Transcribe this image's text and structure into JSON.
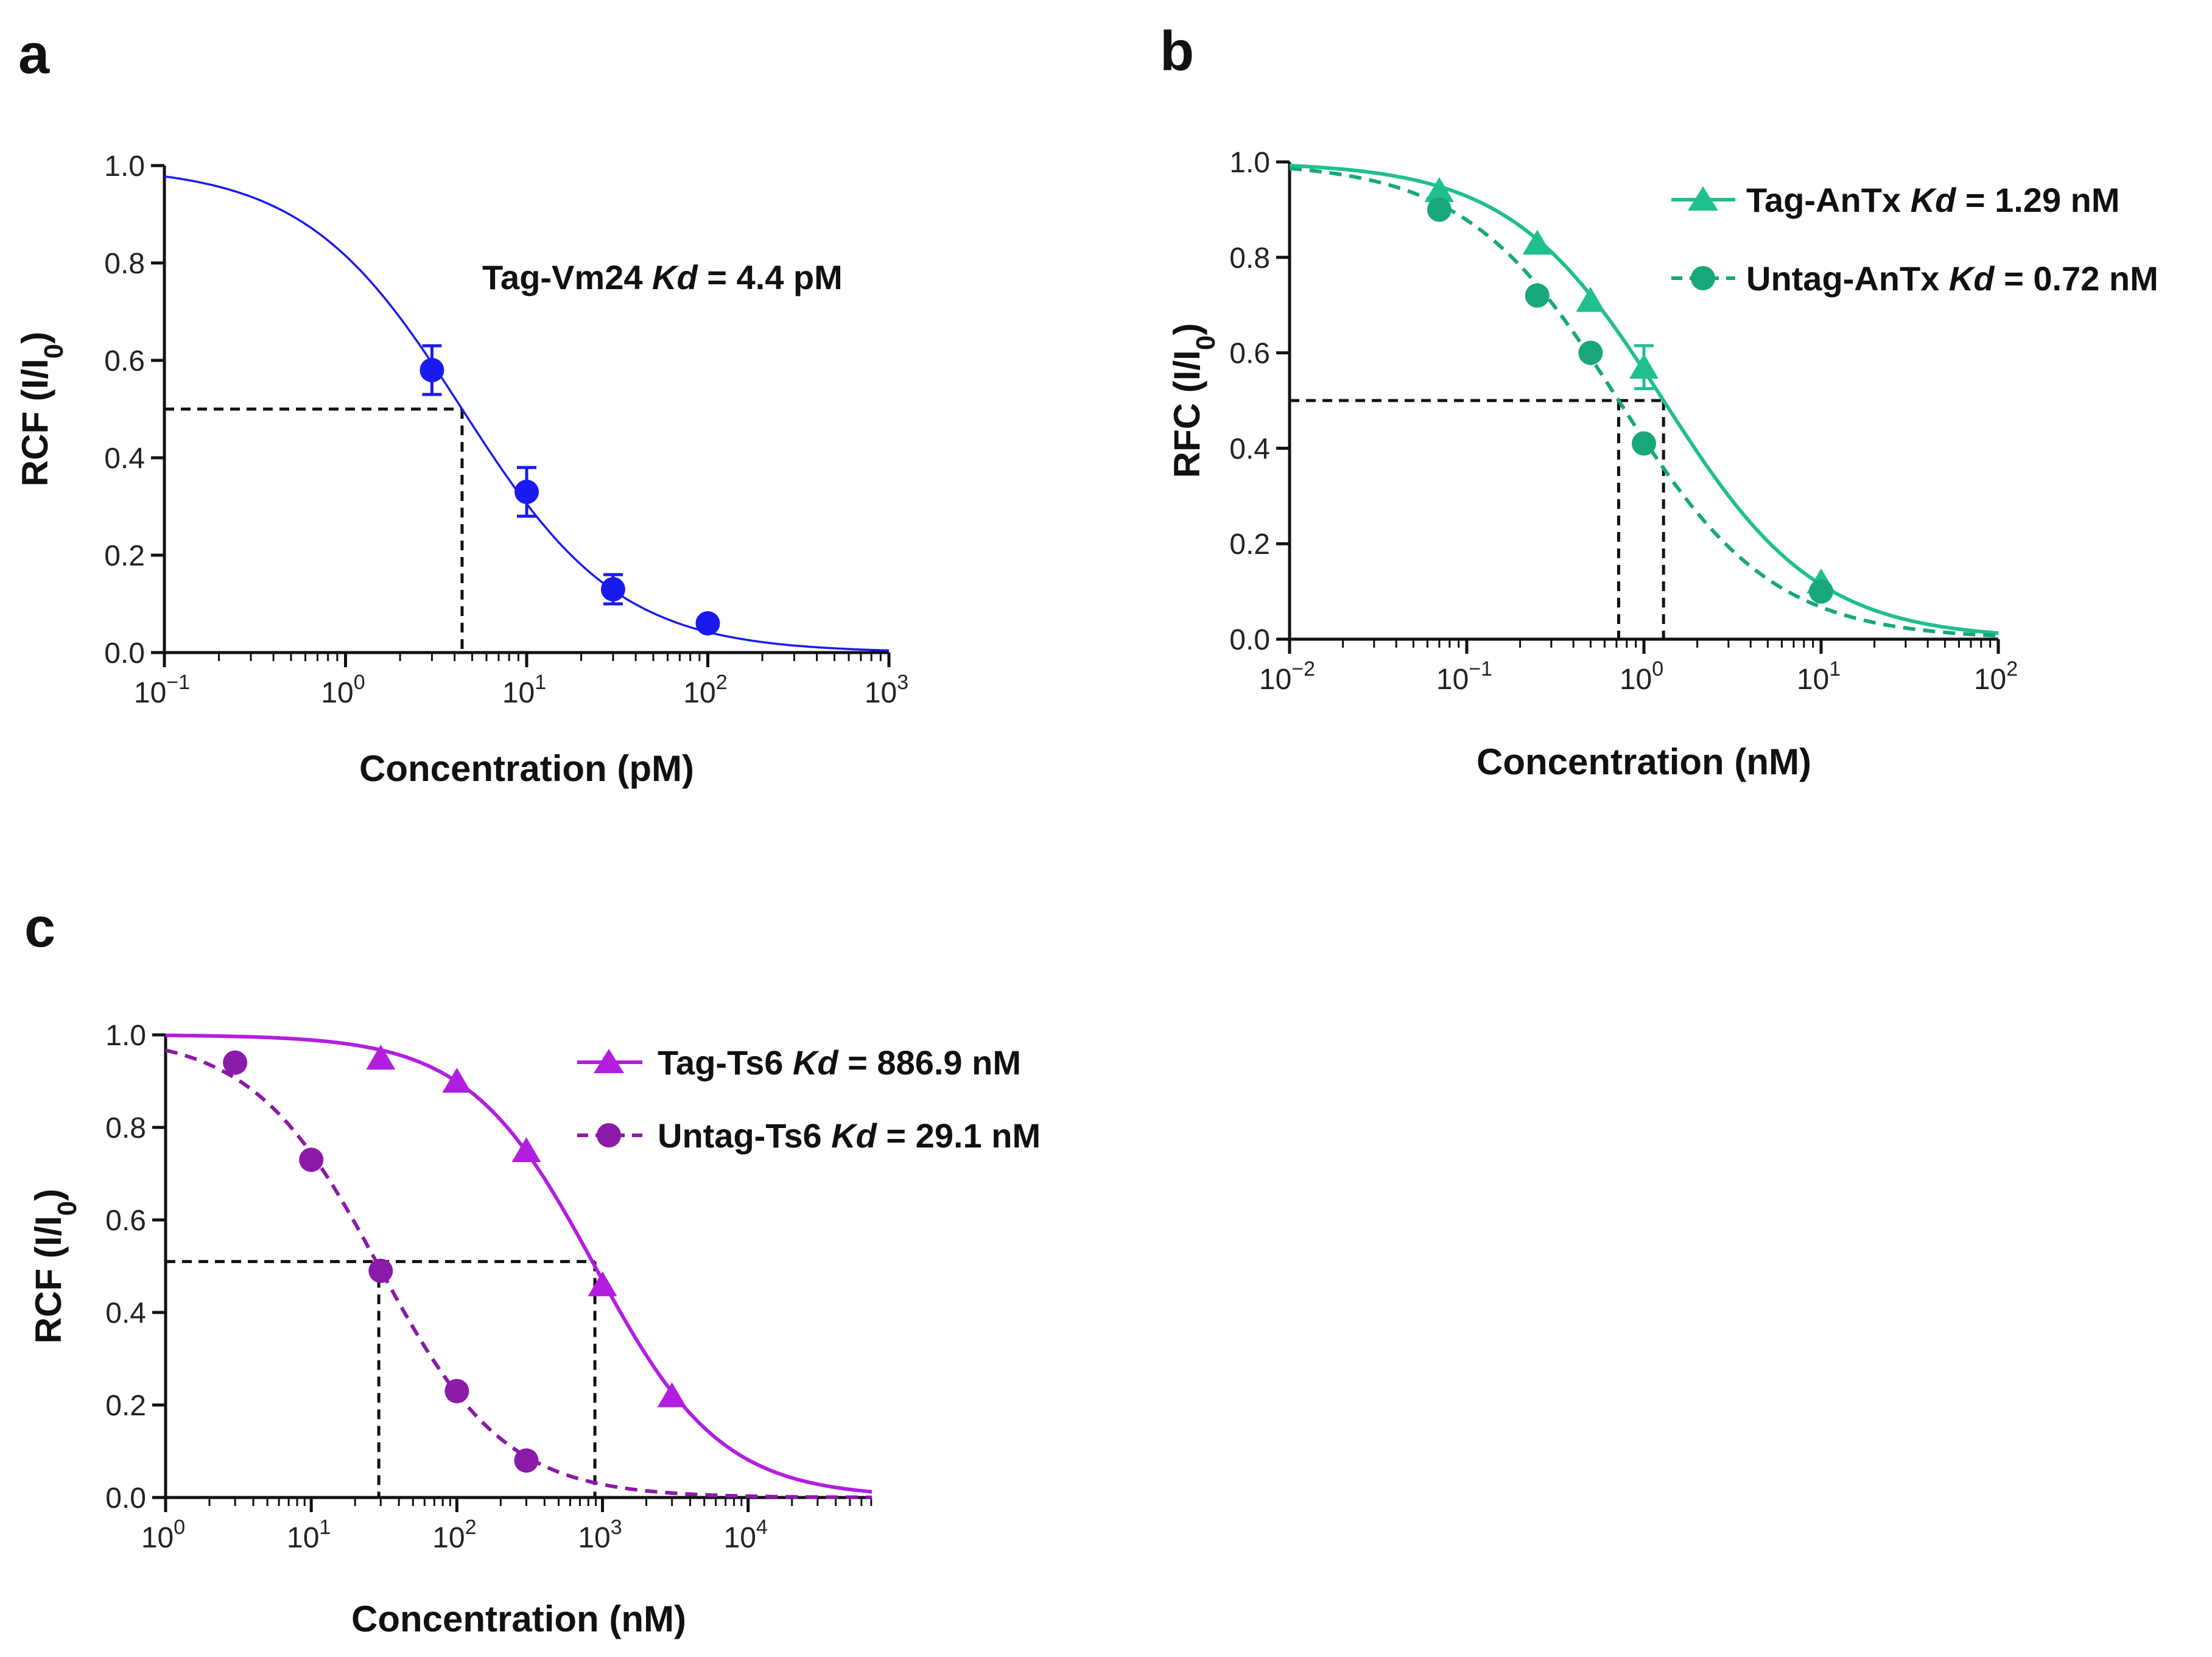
{
  "chart_data": [
    {
      "panel": "a",
      "type": "scatter",
      "xscale": "log",
      "xlim_exp": [
        -1,
        3
      ],
      "ylim": [
        0,
        1
      ],
      "yticks": [
        "0.0",
        "0.2",
        "0.4",
        "0.6",
        "0.8",
        "1.0"
      ],
      "ylabel": "RCF (I/I",
      "ylabel_sub": "0",
      "xlabel": "Concentration (pM)",
      "series": [
        {
          "name": "Tag-Vm24",
          "kd_label": "Kd",
          "kd_value": "= 4.4 pM",
          "kd": 4.4,
          "color": "#1a1aee",
          "marker": "circle",
          "line": "solid",
          "x": [
            3,
            10,
            30,
            100
          ],
          "y": [
            0.58,
            0.33,
            0.13,
            0.06
          ],
          "err": [
            0.05,
            0.05,
            0.03,
            0
          ]
        }
      ],
      "ref_y": 0.5
    },
    {
      "panel": "b",
      "type": "scatter",
      "xscale": "log",
      "xlim_exp": [
        -2,
        2
      ],
      "ylim": [
        0,
        1
      ],
      "yticks": [
        "0.0",
        "0.2",
        "0.4",
        "0.6",
        "0.8",
        "1.0"
      ],
      "ylabel": "RFC (I/I",
      "ylabel_sub": "0",
      "xlabel": "Concentration (nM)",
      "legend": "top-right",
      "series": [
        {
          "name": "Tag-AnTx",
          "kd_label": "Kd",
          "kd_value": "= 1.29 nM",
          "kd": 1.29,
          "color": "#1fbf8f",
          "marker": "triangle",
          "line": "solid",
          "x": [
            0.07,
            0.25,
            0.5,
            1.0,
            10
          ],
          "y": [
            0.94,
            0.83,
            0.71,
            0.57,
            0.12
          ],
          "err": [
            0,
            0,
            0,
            0.045,
            0
          ]
        },
        {
          "name": "Untag-AnTx",
          "kd_label": "Kd",
          "kd_value": "= 0.72 nM",
          "kd": 0.72,
          "color": "#17a77a",
          "marker": "circle",
          "line": "dashed",
          "x": [
            0.07,
            0.25,
            0.5,
            1.0,
            10
          ],
          "y": [
            0.9,
            0.72,
            0.6,
            0.41,
            0.1
          ],
          "err": [
            0,
            0,
            0,
            0,
            0
          ]
        }
      ],
      "ref_y": 0.5
    },
    {
      "panel": "c",
      "type": "scatter",
      "xscale": "log",
      "xlim_exp": [
        0,
        4.85
      ],
      "xtick_exps": [
        0,
        1,
        2,
        3,
        4
      ],
      "ylim": [
        0,
        1
      ],
      "yticks": [
        "0.0",
        "0.2",
        "0.4",
        "0.6",
        "0.8",
        "1.0"
      ],
      "ylabel": "RCF (I/I",
      "ylabel_sub": "0",
      "xlabel": "Concentration (nM)",
      "legend": "top-right",
      "series": [
        {
          "name": "Tag-Ts6",
          "kd_label": "Kd",
          "kd_value": "= 886.9 nM",
          "kd": 886.9,
          "color": "#b21ee0",
          "marker": "triangle",
          "line": "solid",
          "x": [
            30,
            100,
            300,
            1000,
            3000
          ],
          "y": [
            0.95,
            0.9,
            0.75,
            0.46,
            0.22
          ],
          "err": [
            0,
            0,
            0,
            0,
            0
          ]
        },
        {
          "name": "Untag-Ts6",
          "kd_label": "Kd",
          "kd_value": "= 29.1 nM",
          "kd": 29.1,
          "color": "#8a1aa8",
          "marker": "circle",
          "line": "dashed",
          "x": [
            3,
            10,
            30,
            100,
            300
          ],
          "y": [
            0.94,
            0.73,
            0.49,
            0.23,
            0.08
          ],
          "err": [
            0,
            0,
            0,
            0,
            0
          ]
        }
      ],
      "ref_y": 0.51
    }
  ]
}
